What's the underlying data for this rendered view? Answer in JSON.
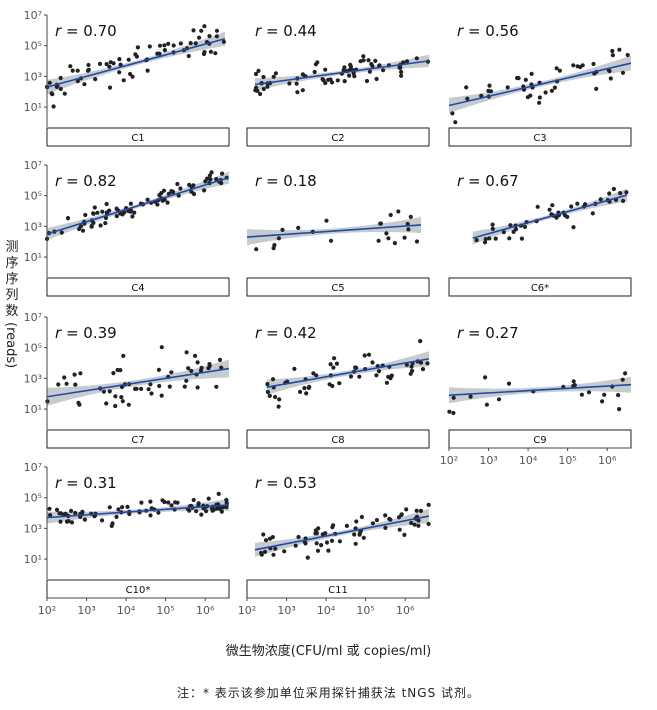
{
  "chart_data": {
    "type": "scatter",
    "ylabel_cjk": "测序序列数",
    "ylabel_unit": "(reads)",
    "xlabel": "微生物浓度(CFU/ml 或 copies/ml)",
    "note": "注：* 表示该参加单位采用探针捕获法 tNGS 试剂。",
    "x_scale": "log10",
    "y_scale": "log10",
    "x_ticks": [
      "10²",
      "10³",
      "10⁴",
      "10⁵",
      "10⁶"
    ],
    "y_ticks": [
      "10⁷",
      "10⁵",
      "10³",
      "10¹"
    ],
    "xlim": [
      100,
      4000000
    ],
    "ylim": [
      0.5,
      10000000
    ],
    "panels": [
      {
        "label": "C1",
        "r": "0.70"
      },
      {
        "label": "C2",
        "r": "0.44"
      },
      {
        "label": "C3",
        "r": "0.56"
      },
      {
        "label": "C4",
        "r": "0.82"
      },
      {
        "label": "C5",
        "r": "0.18"
      },
      {
        "label": "C6*",
        "r": "0.67"
      },
      {
        "label": "C7",
        "r": "0.39"
      },
      {
        "label": "C8",
        "r": "0.42"
      },
      {
        "label": "C9",
        "r": "0.27"
      },
      {
        "label": "C10*",
        "r": "0.31"
      },
      {
        "label": "C11",
        "r": "0.53"
      }
    ],
    "legend": "none",
    "colors": {
      "points": "#222222",
      "fit_line": "#1f4aa8",
      "ci_band": "#b9bec2",
      "strip_border": "#222222"
    }
  }
}
